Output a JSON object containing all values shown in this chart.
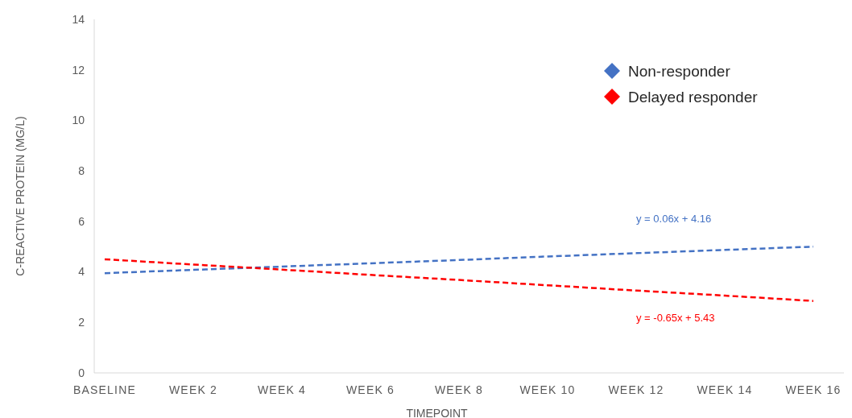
{
  "chart_data": {
    "type": "line",
    "xlabel": "TIMEPOINT",
    "ylabel": "C-REACTIVE PROTEIN (MG/L)",
    "categories": [
      "BASELINE",
      "WEEK 2",
      "WEEK 4",
      "WEEK 6",
      "WEEK 8",
      "WEEK 10",
      "WEEK 12",
      "WEEK 14",
      "WEEK 16"
    ],
    "series": [
      {
        "name": "Non-responder",
        "color": "#4472c4",
        "values": [
          3.95,
          4.08,
          4.21,
          4.34,
          4.47,
          4.61,
          4.74,
          4.87,
          5.0
        ]
      },
      {
        "name": "Delayed responder",
        "color": "#ff0000",
        "values": [
          4.5,
          4.29,
          4.09,
          3.88,
          3.68,
          3.47,
          3.26,
          3.06,
          2.85
        ]
      }
    ],
    "annotations": [
      "y = 0.06x + 4.16",
      "y = -0.65x + 5.43"
    ],
    "ylim": [
      0,
      14
    ],
    "yticks": [
      0,
      2,
      4,
      6,
      8,
      10,
      12,
      14
    ],
    "grid": false,
    "legend": "top right",
    "line_style": "dashed",
    "marker": "none"
  }
}
